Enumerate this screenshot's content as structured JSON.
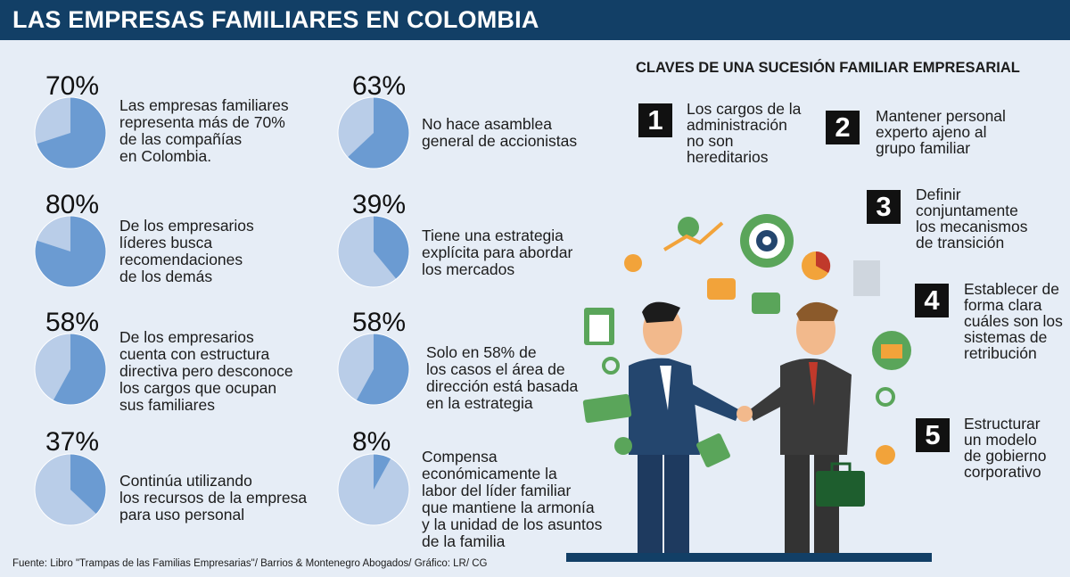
{
  "header": {
    "title": "LAS EMPRESAS FAMILIARES EN COLOMBIA"
  },
  "stats": [
    {
      "percent_label": "70%",
      "value": 70,
      "text": "Las empresas familiares\nrepresenta más de 70%\nde las compañías\nen Colombia."
    },
    {
      "percent_label": "63%",
      "value": 63,
      "text": "No hace asamblea\ngeneral de accionistas"
    },
    {
      "percent_label": "80%",
      "value": 80,
      "text": "De los empresarios\nlíderes busca\nrecomendaciones\nde los demás"
    },
    {
      "percent_label": "39%",
      "value": 39,
      "text": "Tiene una estrategia\nexplícita para abordar\nlos mercados"
    },
    {
      "percent_label": "58%",
      "value": 58,
      "text": "De los empresarios\ncuenta con estructura\ndirectiva pero desconoce\nlos cargos que ocupan\nsus familiares"
    },
    {
      "percent_label": "58%",
      "value": 58,
      "text": "Solo en 58% de\nlos casos el área de\ndirección está basada\nen la estrategia"
    },
    {
      "percent_label": "37%",
      "value": 37,
      "text": "Continúa utilizando\nlos recursos de la empresa\npara uso personal"
    },
    {
      "percent_label": "8%",
      "value": 8,
      "text": "Compensa\neconómicamente la\nlabor del líder familiar\nque mantiene la armonía\ny la unidad de los asuntos\nde la familia"
    }
  ],
  "claves": {
    "title": "CLAVES DE UNA SUCESIÓN FAMILIAR EMPRESARIAL",
    "items": [
      {
        "number": "1",
        "text": "Los cargos de la\nadministración\nno son\nhereditarios"
      },
      {
        "number": "2",
        "text": "Mantener personal\nexperto ajeno al\ngrupo familiar"
      },
      {
        "number": "3",
        "text": "Definir\nconjuntamente\nlos mecanismos\nde transición"
      },
      {
        "number": "4",
        "text": "Establecer de\nforma clara\ncuáles son los\nsistemas de\nretribución"
      },
      {
        "number": "5",
        "text": "Estructurar\nun modelo\nde gobierno\ncorporativo"
      }
    ]
  },
  "footer": {
    "source": "Fuente: Libro \"Trampas de las Familias Empresarias\"/ Barrios & Montenegro Abogados/ Gráfico: LR/ CG"
  },
  "colors": {
    "header_bg": "#123f66",
    "pie_value": "#6b9bd2",
    "pie_rest": "#b9cde8",
    "background": "#e6edf6",
    "accent_green": "#5aa55a"
  }
}
